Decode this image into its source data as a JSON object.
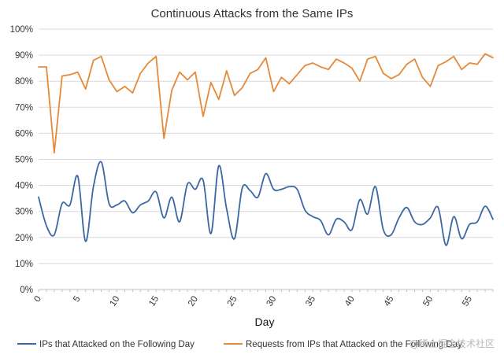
{
  "chart_data": {
    "type": "line",
    "title": "Continuous Attacks from the Same IPs",
    "xlabel": "Day",
    "ylabel": "",
    "xlim": [
      0,
      58
    ],
    "ylim": [
      0,
      100
    ],
    "x_ticks": [
      "0",
      "5",
      "10",
      "15",
      "20",
      "25",
      "30",
      "35",
      "40",
      "45",
      "50",
      "55"
    ],
    "y_ticks": [
      "0%",
      "10%",
      "20%",
      "30%",
      "40%",
      "50%",
      "60%",
      "70%",
      "80%",
      "90%",
      "100%"
    ],
    "grid": true,
    "legend_position": "bottom",
    "series": [
      {
        "name": "IPs that Attacked on the Following Day",
        "color": "#3d67a3",
        "values": [
          35.5,
          24.5,
          21,
          33,
          32.5,
          43.5,
          18.5,
          39.5,
          49,
          33,
          32.5,
          34,
          29.5,
          32.5,
          34,
          37.5,
          27.5,
          35.5,
          26,
          40.5,
          38.5,
          42,
          21.5,
          47.5,
          31,
          19.5,
          39,
          38,
          35.5,
          44.5,
          38.5,
          38.5,
          39.5,
          38.5,
          30.5,
          28,
          26.5,
          21,
          27,
          26,
          23,
          34.5,
          29,
          39.5,
          23,
          21,
          27.5,
          31.5,
          26,
          25,
          27.5,
          31.5,
          17,
          28,
          19.5,
          25,
          26,
          32,
          27
        ]
      },
      {
        "name": "Requests from IPs that Attacked on the Following Day",
        "color": "#e48a3a",
        "values": [
          85.5,
          85.5,
          52.5,
          82,
          82.5,
          83.5,
          77,
          88,
          89.5,
          80.5,
          76,
          78,
          75.5,
          83,
          87,
          89.5,
          58,
          76.5,
          83.5,
          80.5,
          83.5,
          66.5,
          79.5,
          73,
          84,
          74.5,
          77.5,
          83,
          84.5,
          89,
          76,
          81.5,
          79,
          82.5,
          86,
          87,
          85.5,
          84.5,
          88.5,
          87,
          85,
          80,
          88.5,
          89.5,
          83,
          81,
          82.5,
          86.5,
          88.5,
          81.5,
          78,
          86,
          87.5,
          89.5,
          84.5,
          87,
          86.5,
          90.5,
          89
        ]
      }
    ]
  },
  "watermark": {
    "text": "@稀土掘金技术社区"
  }
}
